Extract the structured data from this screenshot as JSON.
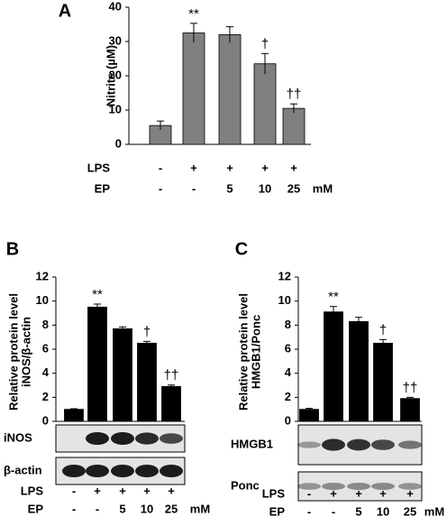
{
  "chart_data": [
    {
      "type": "bar",
      "panel": "A",
      "ylabel": "Nitrite (µM)",
      "color": "#808080",
      "values": [
        5.5,
        32.5,
        32,
        23.5,
        10.5
      ],
      "errors": [
        1.3,
        2.8,
        2.3,
        3.0,
        1.3
      ],
      "bar_annotations": [
        null,
        "**",
        null,
        "†",
        "††"
      ],
      "ylim": [
        0,
        40
      ],
      "yticks": [
        0,
        10,
        20,
        30,
        40
      ],
      "rows": [
        {
          "label": "LPS",
          "cells": [
            "-",
            "+",
            "+",
            "+",
            "+"
          ]
        },
        {
          "label": "EP",
          "cells": [
            "-",
            "-",
            "5",
            "10",
            "25"
          ],
          "unit": "mM"
        }
      ]
    },
    {
      "type": "bar",
      "panel": "B",
      "ylabel": [
        "Relative protein level",
        "iNOS/β-actin"
      ],
      "color": "#000000",
      "values": [
        1,
        9.5,
        7.7,
        6.5,
        2.9
      ],
      "errors": [
        0.05,
        0.25,
        0.15,
        0.15,
        0.12
      ],
      "bar_annotations": [
        null,
        "**",
        null,
        "†",
        "††"
      ],
      "ylim": [
        0,
        12
      ],
      "yticks": [
        0,
        2,
        4,
        6,
        8,
        10,
        12
      ],
      "blots": [
        "iNOS",
        "β-actin"
      ],
      "rows": [
        {
          "label": "LPS",
          "cells": [
            "-",
            "+",
            "+",
            "+",
            "+"
          ]
        },
        {
          "label": "EP",
          "cells": [
            "-",
            "-",
            "5",
            "10",
            "25"
          ],
          "unit": "mM"
        }
      ]
    },
    {
      "type": "bar",
      "panel": "C",
      "ylabel": [
        "Relative protein level",
        "HMGB1/Ponc"
      ],
      "color": "#000000",
      "values": [
        1,
        9.1,
        8.3,
        6.5,
        1.9
      ],
      "errors": [
        0.08,
        0.45,
        0.35,
        0.3,
        0.1
      ],
      "bar_annotations": [
        null,
        "**",
        null,
        "†",
        "††"
      ],
      "ylim": [
        0,
        12
      ],
      "yticks": [
        0,
        2,
        4,
        6,
        8,
        10,
        12
      ],
      "blots": [
        "HMGB1",
        "Ponc"
      ],
      "rows": [
        {
          "label": "LPS",
          "cells": [
            "-",
            "+",
            "+",
            "+",
            "+"
          ]
        },
        {
          "label": "EP",
          "cells": [
            "-",
            "-",
            "5",
            "10",
            "25"
          ],
          "unit": "mM"
        }
      ]
    }
  ]
}
